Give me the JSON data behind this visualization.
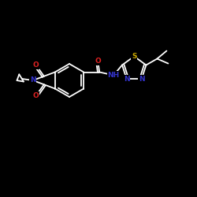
{
  "background_color": "#000000",
  "bond_color": "#ffffff",
  "atom_colors": {
    "O": "#dd2222",
    "N": "#3333cc",
    "S": "#ccaa00",
    "C": "#ffffff",
    "H": "#ffffff"
  },
  "font_size": 6.5,
  "linewidth": 1.3,
  "figsize": [
    2.5,
    2.5
  ],
  "dpi": 100
}
